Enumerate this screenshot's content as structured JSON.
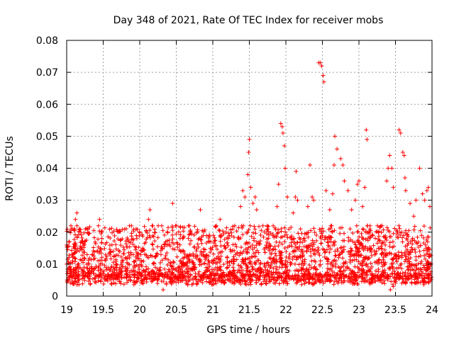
{
  "chart_data": {
    "type": "scatter",
    "title": "Day 348 of 2021, Rate Of TEC Index for receiver mobs",
    "xlabel": "GPS time / hours",
    "ylabel": "ROTI / TECUs",
    "xlim": [
      19,
      24
    ],
    "ylim": [
      0,
      0.08
    ],
    "x_ticks": [
      "19",
      "19.5",
      "20",
      "20.5",
      "21",
      "21.5",
      "22",
      "22.5",
      "23",
      "23.5",
      "24"
    ],
    "y_ticks": [
      "0",
      "0.01",
      "0.02",
      "0.03",
      "0.04",
      "0.05",
      "0.06",
      "0.07",
      "0.08"
    ],
    "grid": true,
    "marker": "+",
    "color": "#ff0000",
    "series": [
      {
        "name": "ROTI",
        "note": "dense cloud of ~3000 points mostly between 0.003 and 0.022 TECU/s; listed points are the distinct outliers",
        "base_band": [
          0.003,
          0.022
        ],
        "points": [
          [
            19.06,
            0.021
          ],
          [
            19.12,
            0.024
          ],
          [
            19.14,
            0.026
          ],
          [
            19.45,
            0.024
          ],
          [
            19.62,
            0.016
          ],
          [
            19.95,
            0.021
          ],
          [
            20.12,
            0.024
          ],
          [
            20.14,
            0.027
          ],
          [
            20.17,
            0.022
          ],
          [
            20.32,
            0.002
          ],
          [
            20.45,
            0.029
          ],
          [
            20.55,
            0.016
          ],
          [
            20.83,
            0.027
          ],
          [
            21.05,
            0.022
          ],
          [
            21.1,
            0.024
          ],
          [
            21.18,
            0.02
          ],
          [
            21.3,
            0.022
          ],
          [
            21.38,
            0.028
          ],
          [
            21.41,
            0.033
          ],
          [
            21.44,
            0.031
          ],
          [
            21.48,
            0.038
          ],
          [
            21.49,
            0.045
          ],
          [
            21.5,
            0.049
          ],
          [
            21.52,
            0.034
          ],
          [
            21.55,
            0.029
          ],
          [
            21.58,
            0.031
          ],
          [
            21.6,
            0.027
          ],
          [
            21.75,
            0.021
          ],
          [
            21.88,
            0.028
          ],
          [
            21.9,
            0.035
          ],
          [
            21.93,
            0.054
          ],
          [
            21.95,
            0.053
          ],
          [
            21.96,
            0.051
          ],
          [
            21.98,
            0.047
          ],
          [
            21.99,
            0.04
          ],
          [
            22.02,
            0.031
          ],
          [
            22.1,
            0.026
          ],
          [
            22.13,
            0.031
          ],
          [
            22.14,
            0.039
          ],
          [
            22.16,
            0.03
          ],
          [
            22.2,
            0.021
          ],
          [
            22.3,
            0.028
          ],
          [
            22.33,
            0.041
          ],
          [
            22.36,
            0.031
          ],
          [
            22.38,
            0.03
          ],
          [
            22.45,
            0.073
          ],
          [
            22.47,
            0.073
          ],
          [
            22.49,
            0.072
          ],
          [
            22.51,
            0.069
          ],
          [
            22.52,
            0.067
          ],
          [
            22.55,
            0.033
          ],
          [
            22.6,
            0.027
          ],
          [
            22.64,
            0.032
          ],
          [
            22.66,
            0.041
          ],
          [
            22.67,
            0.05
          ],
          [
            22.7,
            0.046
          ],
          [
            22.75,
            0.043
          ],
          [
            22.78,
            0.041
          ],
          [
            22.8,
            0.036
          ],
          [
            22.85,
            0.033
          ],
          [
            22.9,
            0.027
          ],
          [
            22.95,
            0.03
          ],
          [
            22.98,
            0.035
          ],
          [
            23.0,
            0.036
          ],
          [
            23.05,
            0.028
          ],
          [
            23.08,
            0.034
          ],
          [
            23.1,
            0.052
          ],
          [
            23.11,
            0.049
          ],
          [
            23.15,
            0.021
          ],
          [
            23.3,
            0.022
          ],
          [
            23.38,
            0.036
          ],
          [
            23.4,
            0.04
          ],
          [
            23.42,
            0.044
          ],
          [
            23.45,
            0.04
          ],
          [
            23.47,
            0.034
          ],
          [
            23.43,
            0.002
          ],
          [
            23.47,
            0.003
          ],
          [
            23.55,
            0.052
          ],
          [
            23.57,
            0.051
          ],
          [
            23.6,
            0.045
          ],
          [
            23.62,
            0.044
          ],
          [
            23.63,
            0.037
          ],
          [
            23.64,
            0.033
          ],
          [
            23.7,
            0.029
          ],
          [
            23.75,
            0.025
          ],
          [
            23.78,
            0.03
          ],
          [
            23.83,
            0.04
          ],
          [
            23.87,
            0.032
          ],
          [
            23.9,
            0.03
          ],
          [
            23.93,
            0.033
          ],
          [
            23.95,
            0.034
          ],
          [
            23.97,
            0.028
          ]
        ]
      }
    ]
  }
}
